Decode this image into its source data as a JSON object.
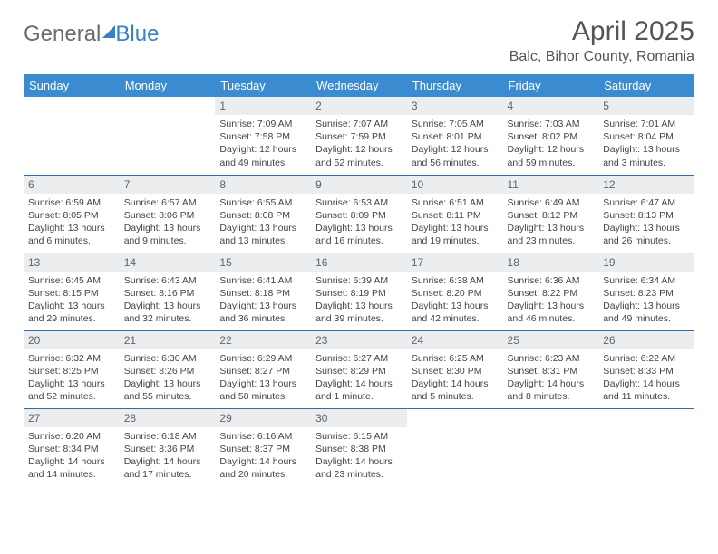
{
  "brand": {
    "part1": "General",
    "part2": "Blue"
  },
  "title": "April 2025",
  "location": "Balc, Bihor County, Romania",
  "colors": {
    "header_bg": "#3b8bd0",
    "row_border": "#2e6ea8",
    "daynum_bg": "#ebedee",
    "text": "#444444"
  },
  "weekdays": [
    "Sunday",
    "Monday",
    "Tuesday",
    "Wednesday",
    "Thursday",
    "Friday",
    "Saturday"
  ],
  "weeks": [
    [
      {
        "n": "",
        "sunrise": "",
        "sunset": "",
        "daylight": ""
      },
      {
        "n": "",
        "sunrise": "",
        "sunset": "",
        "daylight": ""
      },
      {
        "n": "1",
        "sunrise": "7:09 AM",
        "sunset": "7:58 PM",
        "daylight": "12 hours and 49 minutes."
      },
      {
        "n": "2",
        "sunrise": "7:07 AM",
        "sunset": "7:59 PM",
        "daylight": "12 hours and 52 minutes."
      },
      {
        "n": "3",
        "sunrise": "7:05 AM",
        "sunset": "8:01 PM",
        "daylight": "12 hours and 56 minutes."
      },
      {
        "n": "4",
        "sunrise": "7:03 AM",
        "sunset": "8:02 PM",
        "daylight": "12 hours and 59 minutes."
      },
      {
        "n": "5",
        "sunrise": "7:01 AM",
        "sunset": "8:04 PM",
        "daylight": "13 hours and 3 minutes."
      }
    ],
    [
      {
        "n": "6",
        "sunrise": "6:59 AM",
        "sunset": "8:05 PM",
        "daylight": "13 hours and 6 minutes."
      },
      {
        "n": "7",
        "sunrise": "6:57 AM",
        "sunset": "8:06 PM",
        "daylight": "13 hours and 9 minutes."
      },
      {
        "n": "8",
        "sunrise": "6:55 AM",
        "sunset": "8:08 PM",
        "daylight": "13 hours and 13 minutes."
      },
      {
        "n": "9",
        "sunrise": "6:53 AM",
        "sunset": "8:09 PM",
        "daylight": "13 hours and 16 minutes."
      },
      {
        "n": "10",
        "sunrise": "6:51 AM",
        "sunset": "8:11 PM",
        "daylight": "13 hours and 19 minutes."
      },
      {
        "n": "11",
        "sunrise": "6:49 AM",
        "sunset": "8:12 PM",
        "daylight": "13 hours and 23 minutes."
      },
      {
        "n": "12",
        "sunrise": "6:47 AM",
        "sunset": "8:13 PM",
        "daylight": "13 hours and 26 minutes."
      }
    ],
    [
      {
        "n": "13",
        "sunrise": "6:45 AM",
        "sunset": "8:15 PM",
        "daylight": "13 hours and 29 minutes."
      },
      {
        "n": "14",
        "sunrise": "6:43 AM",
        "sunset": "8:16 PM",
        "daylight": "13 hours and 32 minutes."
      },
      {
        "n": "15",
        "sunrise": "6:41 AM",
        "sunset": "8:18 PM",
        "daylight": "13 hours and 36 minutes."
      },
      {
        "n": "16",
        "sunrise": "6:39 AM",
        "sunset": "8:19 PM",
        "daylight": "13 hours and 39 minutes."
      },
      {
        "n": "17",
        "sunrise": "6:38 AM",
        "sunset": "8:20 PM",
        "daylight": "13 hours and 42 minutes."
      },
      {
        "n": "18",
        "sunrise": "6:36 AM",
        "sunset": "8:22 PM",
        "daylight": "13 hours and 46 minutes."
      },
      {
        "n": "19",
        "sunrise": "6:34 AM",
        "sunset": "8:23 PM",
        "daylight": "13 hours and 49 minutes."
      }
    ],
    [
      {
        "n": "20",
        "sunrise": "6:32 AM",
        "sunset": "8:25 PM",
        "daylight": "13 hours and 52 minutes."
      },
      {
        "n": "21",
        "sunrise": "6:30 AM",
        "sunset": "8:26 PM",
        "daylight": "13 hours and 55 minutes."
      },
      {
        "n": "22",
        "sunrise": "6:29 AM",
        "sunset": "8:27 PM",
        "daylight": "13 hours and 58 minutes."
      },
      {
        "n": "23",
        "sunrise": "6:27 AM",
        "sunset": "8:29 PM",
        "daylight": "14 hours and 1 minute."
      },
      {
        "n": "24",
        "sunrise": "6:25 AM",
        "sunset": "8:30 PM",
        "daylight": "14 hours and 5 minutes."
      },
      {
        "n": "25",
        "sunrise": "6:23 AM",
        "sunset": "8:31 PM",
        "daylight": "14 hours and 8 minutes."
      },
      {
        "n": "26",
        "sunrise": "6:22 AM",
        "sunset": "8:33 PM",
        "daylight": "14 hours and 11 minutes."
      }
    ],
    [
      {
        "n": "27",
        "sunrise": "6:20 AM",
        "sunset": "8:34 PM",
        "daylight": "14 hours and 14 minutes."
      },
      {
        "n": "28",
        "sunrise": "6:18 AM",
        "sunset": "8:36 PM",
        "daylight": "14 hours and 17 minutes."
      },
      {
        "n": "29",
        "sunrise": "6:16 AM",
        "sunset": "8:37 PM",
        "daylight": "14 hours and 20 minutes."
      },
      {
        "n": "30",
        "sunrise": "6:15 AM",
        "sunset": "8:38 PM",
        "daylight": "14 hours and 23 minutes."
      },
      {
        "n": "",
        "sunrise": "",
        "sunset": "",
        "daylight": ""
      },
      {
        "n": "",
        "sunrise": "",
        "sunset": "",
        "daylight": ""
      },
      {
        "n": "",
        "sunrise": "",
        "sunset": "",
        "daylight": ""
      }
    ]
  ],
  "labels": {
    "sunrise": "Sunrise:",
    "sunset": "Sunset:",
    "daylight": "Daylight:"
  }
}
